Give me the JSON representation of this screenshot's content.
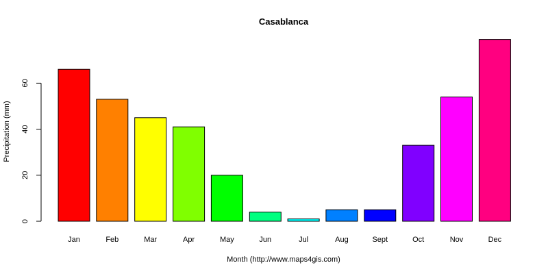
{
  "chart_data": {
    "type": "bar",
    "title": "Casablanca",
    "xlabel": "Month (http://www.maps4gis.com)",
    "ylabel": "Precipitation (mm)",
    "categories": [
      "Jan",
      "Feb",
      "Mar",
      "Apr",
      "May",
      "Jun",
      "Jul",
      "Aug",
      "Sept",
      "Oct",
      "Nov",
      "Dec"
    ],
    "values": [
      66,
      53,
      45,
      41,
      20,
      4,
      1,
      5,
      5,
      33,
      54,
      79
    ],
    "colors": [
      "#FF0000",
      "#FF8000",
      "#FFFF00",
      "#80FF00",
      "#00FF00",
      "#00FF80",
      "#00FFFF",
      "#0080FF",
      "#0000FF",
      "#8000FF",
      "#FF00FF",
      "#FF0080"
    ],
    "yticks": [
      "0",
      "20",
      "40",
      "60"
    ],
    "ylim": [
      0,
      79
    ],
    "grid": false,
    "legend": "none"
  }
}
